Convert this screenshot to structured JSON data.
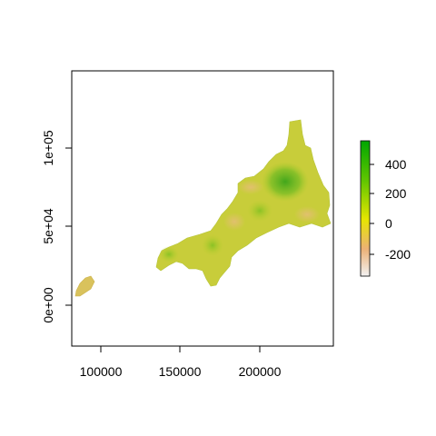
{
  "chart_data": {
    "type": "heatmap",
    "title": "",
    "xlabel": "",
    "ylabel": "",
    "xlim": [
      82000,
      246000
    ],
    "ylim": [
      -26000,
      148000
    ],
    "x_ticks": [
      {
        "value": 100000,
        "label": "100000"
      },
      {
        "value": 150000,
        "label": "150000"
      },
      {
        "value": 200000,
        "label": "200000"
      }
    ],
    "y_ticks": [
      {
        "value": 0,
        "label": "0e+00"
      },
      {
        "value": 50000,
        "label": "5e+04"
      },
      {
        "value": 100000,
        "label": "1e+05"
      }
    ],
    "legend": {
      "placement": "right",
      "range": [
        -370,
        560
      ],
      "ticks": [
        {
          "value": 400,
          "label": "400"
        },
        {
          "value": 200,
          "label": "200"
        },
        {
          "value": 0,
          "label": "0"
        },
        {
          "value": -200,
          "label": "-200"
        }
      ],
      "colors": [
        "#f2f2f2",
        "#ecb176",
        "#e6e600",
        "#63c600",
        "#00a600"
      ]
    },
    "colors": {
      "low": "#ebba84",
      "mid": "#d8d431",
      "high": "#19a40b"
    }
  }
}
